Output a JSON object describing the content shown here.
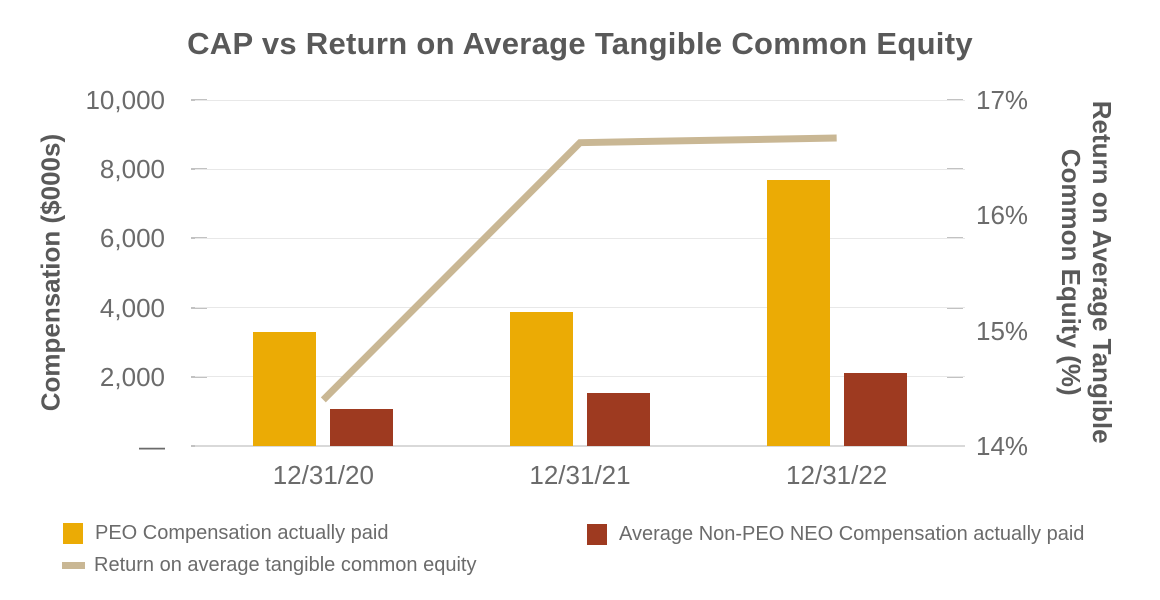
{
  "title": "CAP vs Return on Average Tangible Common Equity",
  "left_axis": {
    "title": "Compensation ($000s)",
    "ticks": [
      {
        "label": "10,000",
        "value": 10000
      },
      {
        "label": "8,000",
        "value": 8000
      },
      {
        "label": "6,000",
        "value": 6000
      },
      {
        "label": "4,000",
        "value": 4000
      },
      {
        "label": "2,000",
        "value": 2000
      },
      {
        "label": "—",
        "value": 0
      }
    ]
  },
  "right_axis": {
    "title_lines": [
      "Return on Average Tangible",
      "Common Equity (%)"
    ],
    "ticks": [
      {
        "label": "17%",
        "value": 17
      },
      {
        "label": "16%",
        "value": 16
      },
      {
        "label": "15%",
        "value": 15
      },
      {
        "label": "14%",
        "value": 14
      }
    ]
  },
  "x_axis": {
    "categories": [
      "12/31/20",
      "12/31/21",
      "12/31/22"
    ]
  },
  "legend": [
    {
      "label": "PEO Compensation actually paid",
      "swatch": "square",
      "color": "#EBAB05"
    },
    {
      "label": "Average Non-PEO NEO Compensation actually paid",
      "swatch": "square",
      "color": "#9E3A20"
    },
    {
      "label": "Return on average tangible common equity",
      "swatch": "line",
      "color": "#C9B794"
    }
  ],
  "colors": {
    "peo_bar": "#EBAB05",
    "non_peo_bar": "#9E3A20",
    "return_line": "#C9B794",
    "title_text": "#595959",
    "tick_text": "#6B6B6B",
    "gridline": "#E8E8E8",
    "baseline": "#D9D9D9",
    "tick_dash": "#C2C2C2"
  },
  "chart_data": {
    "type": "bar",
    "subtype": "grouped bars with secondary-axis line",
    "title": "CAP vs Return on Average Tangible Common Equity",
    "categories": [
      "12/31/20",
      "12/31/21",
      "12/31/22"
    ],
    "series": [
      {
        "name": "PEO Compensation actually paid",
        "type": "bar",
        "axis": "left",
        "color": "#EBAB05",
        "values": [
          3290,
          3870,
          7690
        ]
      },
      {
        "name": "Average Non-PEO NEO Compensation actually paid",
        "type": "bar",
        "axis": "left",
        "color": "#9E3A20",
        "values": [
          1060,
          1530,
          2110
        ]
      },
      {
        "name": "Return on average tangible common equity",
        "type": "line",
        "axis": "right",
        "color": "#C9B794",
        "values": [
          14.4,
          16.63,
          16.67
        ]
      }
    ],
    "left_ylabel": "Compensation ($000s)",
    "right_ylabel": "Return on Average Tangible Common Equity (%)",
    "left_ylim": [
      0,
      10000
    ],
    "right_ylim": [
      14,
      17
    ],
    "left_gridline_step": 2000,
    "grid": "horizontal only",
    "legend_position": "bottom"
  }
}
